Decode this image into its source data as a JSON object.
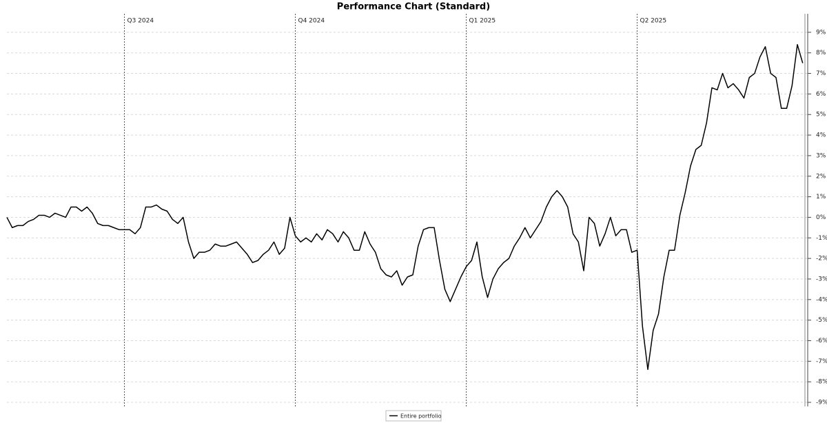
{
  "chart_data": {
    "type": "line",
    "title": "Performance Chart (Standard)",
    "categories": [
      null,
      null,
      null,
      null,
      null,
      null,
      null,
      null,
      null,
      null,
      null,
      null,
      null,
      null,
      null,
      null,
      null,
      null,
      null,
      null,
      null,
      null,
      "Q3 2024",
      null,
      null,
      null,
      null,
      null,
      null,
      null,
      null,
      null,
      null,
      null,
      null,
      null,
      null,
      null,
      null,
      null,
      null,
      null,
      null,
      null,
      null,
      null,
      null,
      null,
      null,
      null,
      null,
      null,
      null,
      null,
      "Q4 2024",
      null,
      null,
      null,
      null,
      null,
      null,
      null,
      null,
      null,
      null,
      null,
      null,
      null,
      null,
      null,
      null,
      null,
      null,
      null,
      null,
      null,
      null,
      null,
      null,
      null,
      null,
      null,
      null,
      null,
      null,
      null,
      "Q1 2025",
      null,
      null,
      null,
      null,
      null,
      null,
      null,
      null,
      null,
      null,
      null,
      null,
      null,
      null,
      null,
      null,
      null,
      null,
      null,
      null,
      null,
      null,
      null,
      null,
      null,
      null,
      null,
      null,
      null,
      null,
      null,
      "Q2 2025",
      null,
      null,
      null,
      null,
      null,
      null,
      null,
      null,
      null,
      null,
      null,
      null,
      null,
      null,
      null,
      null,
      null,
      null,
      null,
      null,
      null,
      null,
      null,
      null,
      null,
      null,
      null,
      null,
      null,
      null,
      null
    ],
    "series": [
      {
        "name": "Entire portfolio",
        "color": "#000000",
        "values": [
          0.0,
          -0.5,
          -0.4,
          -0.4,
          -0.2,
          -0.1,
          0.1,
          0.1,
          0.0,
          0.2,
          0.1,
          0.0,
          0.5,
          0.5,
          0.3,
          0.5,
          0.2,
          -0.3,
          -0.4,
          -0.4,
          -0.5,
          -0.6,
          -0.6,
          -0.6,
          -0.8,
          -0.5,
          0.5,
          0.5,
          0.6,
          0.4,
          0.3,
          -0.1,
          -0.3,
          0.0,
          -1.2,
          -2.0,
          -1.7,
          -1.7,
          -1.6,
          -1.3,
          -1.4,
          -1.4,
          -1.3,
          -1.2,
          -1.5,
          -1.8,
          -2.2,
          -2.1,
          -1.8,
          -1.6,
          -1.2,
          -1.8,
          -1.5,
          0.0,
          -0.9,
          -1.2,
          -1.0,
          -1.2,
          -0.8,
          -1.1,
          -0.6,
          -0.8,
          -1.2,
          -0.7,
          -1.0,
          -1.6,
          -1.6,
          -0.7,
          -1.3,
          -1.7,
          -2.5,
          -2.8,
          -2.9,
          -2.6,
          -3.3,
          -2.9,
          -2.8,
          -1.4,
          -0.6,
          -0.5,
          -0.5,
          -2.1,
          -3.5,
          -4.1,
          -3.5,
          -2.9,
          -2.4,
          -2.1,
          -1.2,
          -2.9,
          -3.9,
          -3.0,
          -2.5,
          -2.2,
          -2.0,
          -1.4,
          -1.0,
          -0.5,
          -1.0,
          -0.6,
          -0.2,
          0.5,
          1.0,
          1.3,
          1.0,
          0.5,
          -0.8,
          -1.2,
          -2.6,
          0.0,
          -0.3,
          -1.4,
          -0.8,
          0.0,
          -0.9,
          -0.6,
          -0.6,
          -1.7,
          -1.6,
          -5.3,
          -7.4,
          -5.5,
          -4.7,
          -2.9,
          -1.6,
          -1.6,
          0.1,
          1.2,
          2.5,
          3.3,
          3.5,
          4.6,
          6.3,
          6.2,
          7.0,
          6.3,
          6.5,
          6.2,
          5.8,
          6.8,
          7.0,
          7.8,
          8.3,
          7.0,
          6.8,
          5.3,
          5.3,
          6.4,
          8.4,
          7.5
        ]
      }
    ],
    "ylim": [
      -9.2,
      9.9
    ],
    "yticks": [
      {
        "value": -9,
        "label": "-9%"
      },
      {
        "value": -8,
        "label": "-8%"
      },
      {
        "value": -7,
        "label": "-7%"
      },
      {
        "value": -6,
        "label": "-6%"
      },
      {
        "value": -5,
        "label": "-5%"
      },
      {
        "value": -4,
        "label": "-4%"
      },
      {
        "value": -3,
        "label": "-3%"
      },
      {
        "value": -2,
        "label": "-2%"
      },
      {
        "value": -1,
        "label": "-1%"
      },
      {
        "value": 0,
        "label": "0%"
      },
      {
        "value": 1,
        "label": "1%"
      },
      {
        "value": 2,
        "label": "2%"
      },
      {
        "value": 3,
        "label": "3%"
      },
      {
        "value": 4,
        "label": "4%"
      },
      {
        "value": 5,
        "label": "5%"
      },
      {
        "value": 6,
        "label": "6%"
      },
      {
        "value": 7,
        "label": "7%"
      },
      {
        "value": 8,
        "label": "8%"
      },
      {
        "value": 9,
        "label": "9%"
      }
    ],
    "grid": true
  }
}
